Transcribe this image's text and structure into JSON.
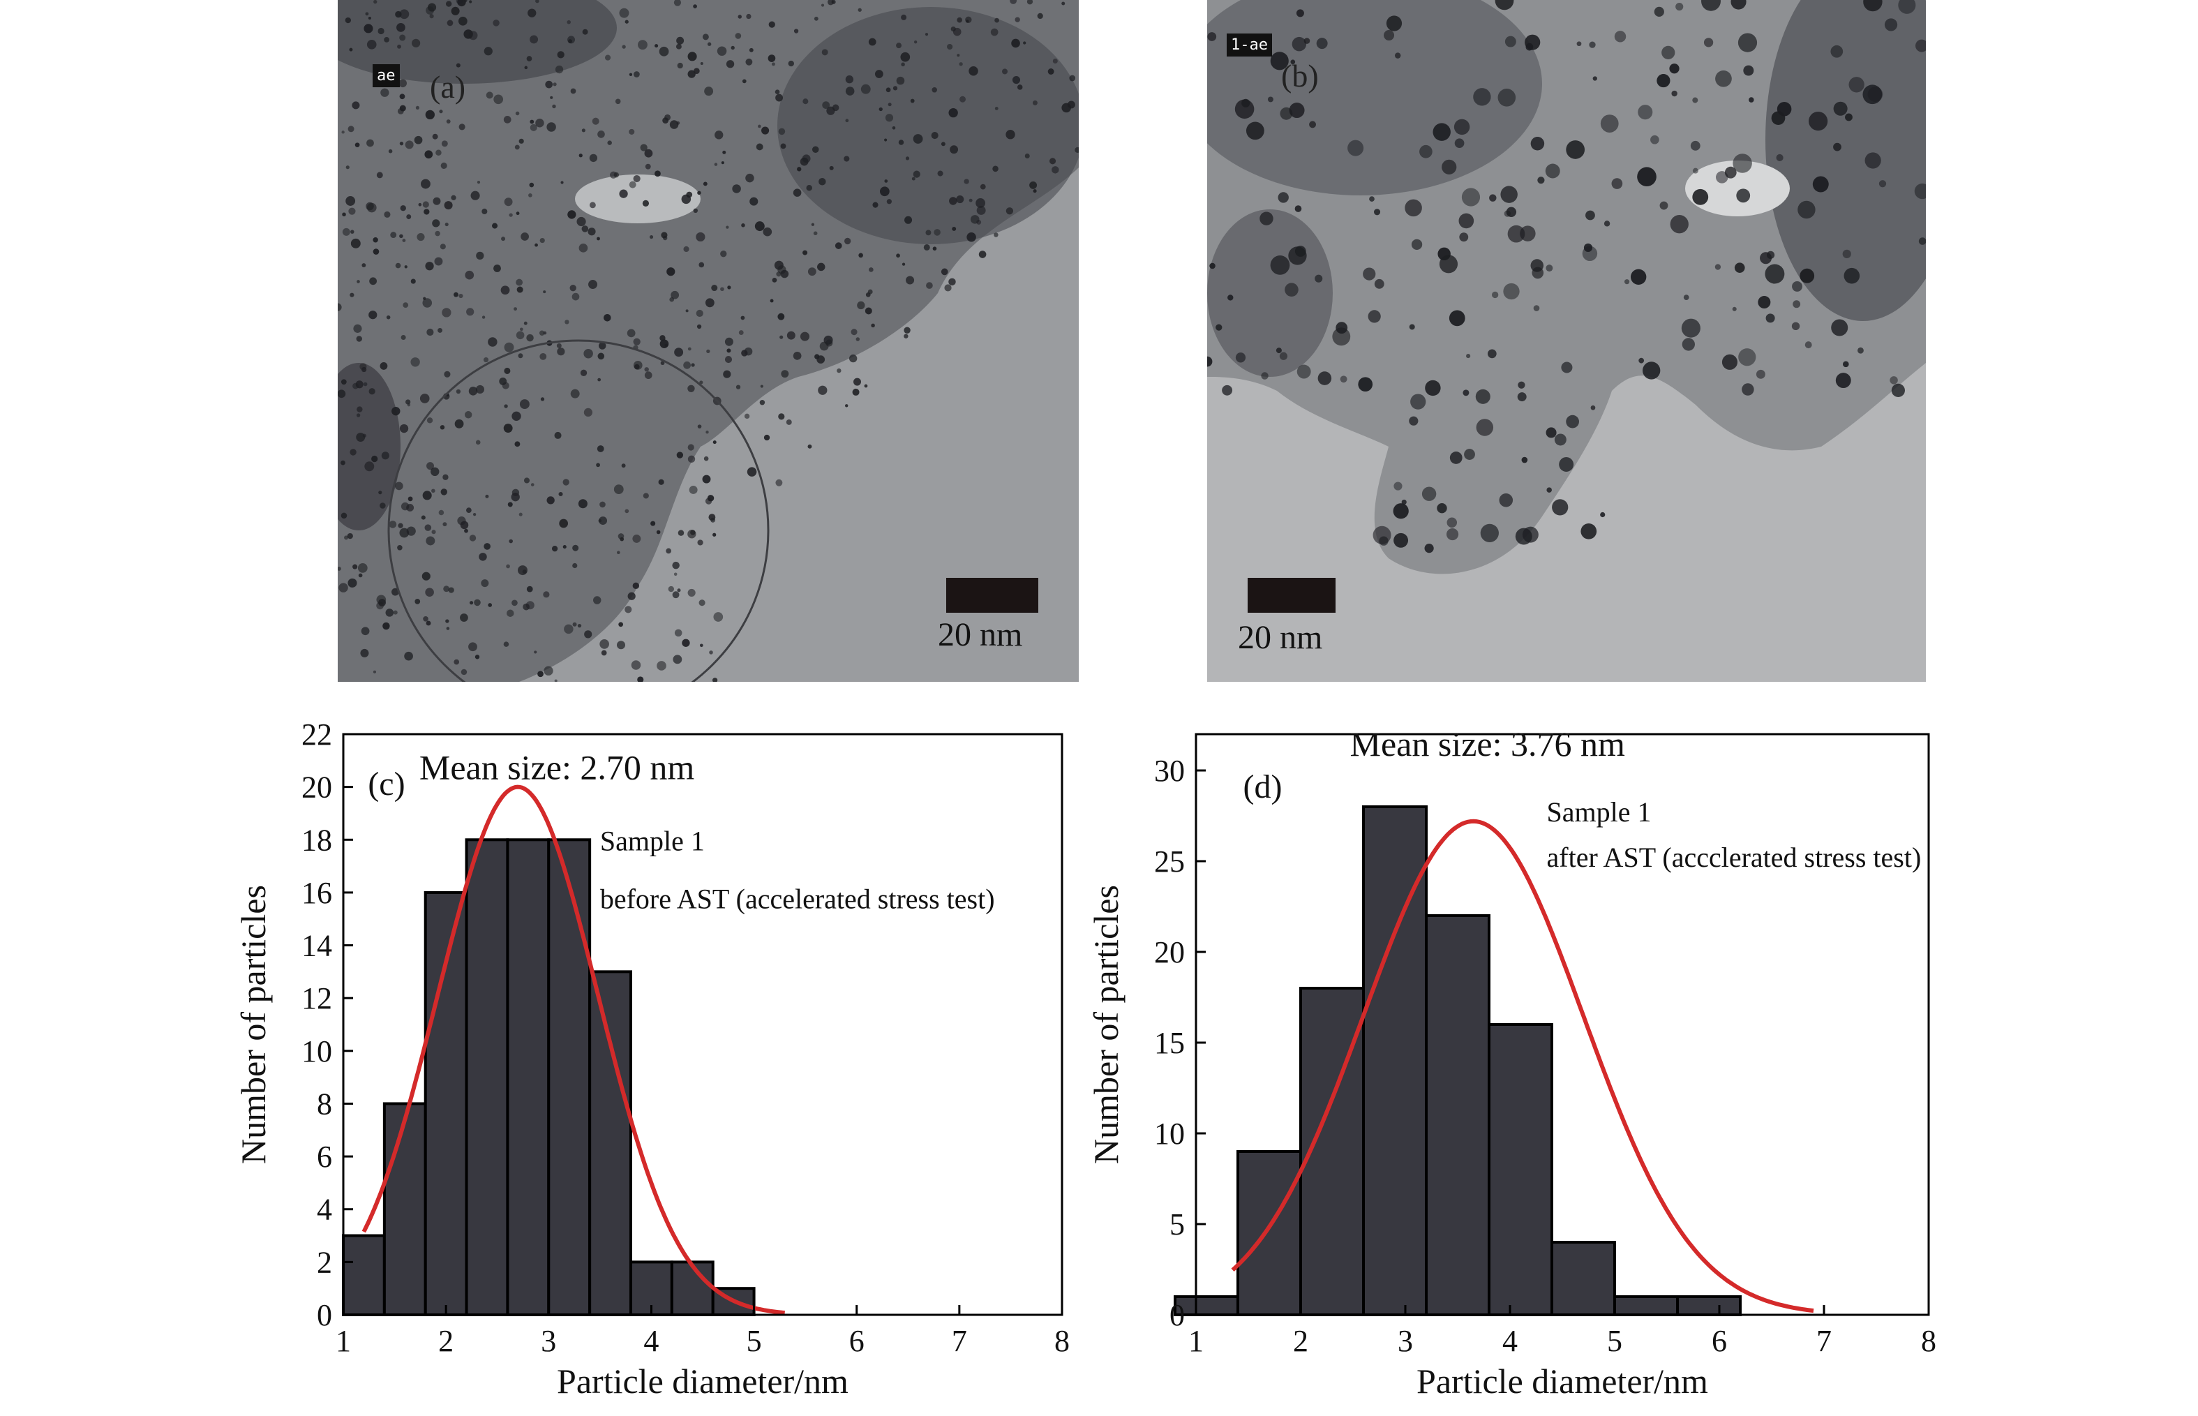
{
  "panels": {
    "a": {
      "label": "(a)",
      "tag": "ae",
      "scale_label": "20 nm"
    },
    "b": {
      "label": "(b)",
      "tag": "1-ae",
      "scale_label": "20 nm"
    }
  },
  "chart_data": [
    {
      "type": "bar",
      "panel_label": "(c)",
      "annotation_mean": "Mean size: 2.70 nm",
      "annotation_sample": "Sample 1",
      "annotation_condition": "before AST (accelerated stress test)",
      "xlabel": "Particle diameter/nm",
      "ylabel": "Number of particles",
      "xlim": [
        1,
        8
      ],
      "ylim": [
        0,
        22
      ],
      "xticks": [
        1,
        2,
        3,
        4,
        5,
        6,
        7,
        8
      ],
      "yticks": [
        0,
        2,
        4,
        6,
        8,
        10,
        12,
        14,
        16,
        18,
        20,
        22
      ],
      "bar_width": 0.4,
      "bins": [
        1.2,
        1.6,
        2.0,
        2.4,
        2.8,
        3.2,
        3.6,
        4.0,
        4.4,
        4.8
      ],
      "values": [
        3,
        8,
        16,
        18,
        18,
        18,
        13,
        2,
        2,
        1
      ],
      "bar_color": "#383840",
      "fit": {
        "type": "gaussian",
        "mean": 2.7,
        "peak": 20.0,
        "sigma": 0.78,
        "x_range": [
          1.2,
          5.3
        ],
        "color": "#d42a2a"
      }
    },
    {
      "type": "bar",
      "panel_label": "(d)",
      "annotation_mean": "Mean size: 3.76 nm",
      "annotation_sample": "Sample 1",
      "annotation_condition": "after AST (accclerated stress test)",
      "xlabel": "Particle diameter/nm",
      "ylabel": "Number of particles",
      "xlim": [
        1,
        8
      ],
      "ylim": [
        0,
        32
      ],
      "xticks": [
        1,
        2,
        3,
        4,
        5,
        6,
        7,
        8
      ],
      "yticks": [
        0,
        5,
        10,
        15,
        20,
        25,
        30
      ],
      "bar_width": 0.6,
      "bins": [
        1.1,
        1.7,
        2.3,
        2.9,
        3.5,
        4.1,
        4.7,
        5.3,
        5.9,
        6.5,
        7.1
      ],
      "values": [
        1,
        9,
        18,
        28,
        22,
        16,
        4,
        1,
        1,
        0,
        0
      ],
      "bar_color": "#383840",
      "fit": {
        "type": "gaussian",
        "mean": 3.65,
        "peak": 27.2,
        "sigma": 1.05,
        "x_range": [
          1.35,
          6.9
        ],
        "color": "#d42a2a"
      }
    }
  ]
}
